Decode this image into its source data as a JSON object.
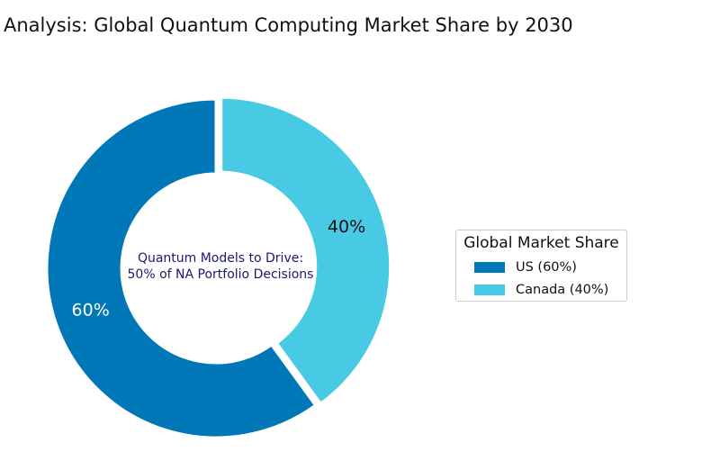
{
  "title": "Analysis: Global Quantum Computing Market Share by 2030",
  "chart_data": {
    "type": "pie",
    "variant": "donut",
    "title": "Analysis: Global Quantum Computing Market Share by 2030",
    "categories": [
      "US",
      "Canada"
    ],
    "values": [
      60,
      40
    ],
    "value_labels": [
      "60%",
      "40%"
    ],
    "colors": [
      "#0077b6",
      "#48cae4"
    ],
    "exploded": "Canada",
    "center_text": [
      "Quantum Models to Drive:",
      "50% of NA Portfolio Decisions"
    ],
    "legend": {
      "title": "Global Market Share",
      "entries": [
        "US (60%)",
        "Canada (40%)"
      ],
      "placement": "right"
    }
  }
}
